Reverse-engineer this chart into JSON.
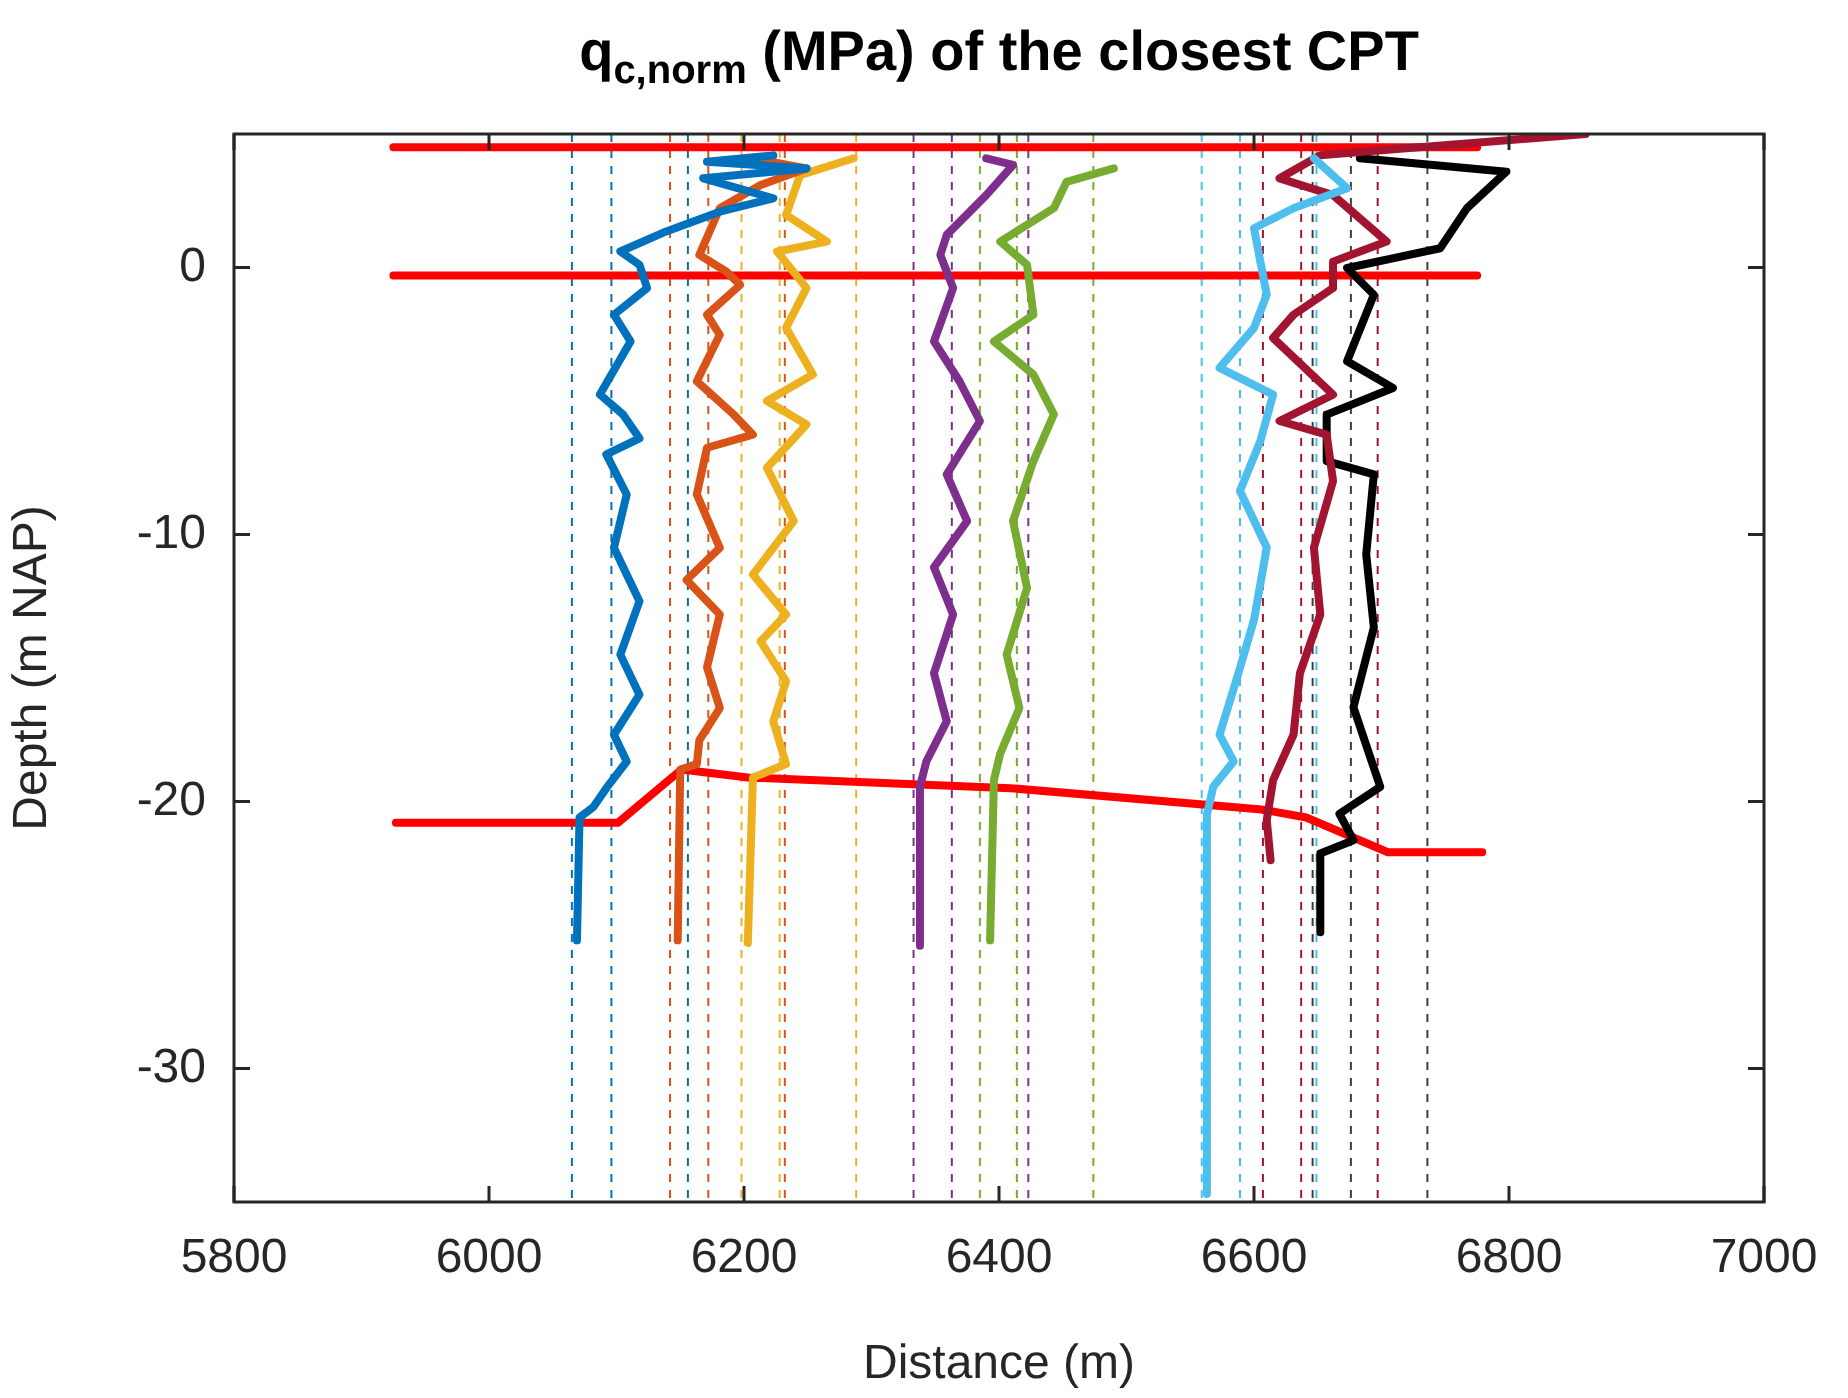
{
  "chart_data": {
    "type": "line",
    "title": "q$_{c,norm}$ (MPa) of the closest CPT",
    "xlabel": "Distance (m)",
    "ylabel": "Depth (m NAP)",
    "xlim": [
      5800,
      7000
    ],
    "xticks": [
      5800,
      6000,
      6200,
      6400,
      6600,
      6800,
      7000
    ],
    "ylim": [
      -35,
      5
    ],
    "yticks": [
      -30,
      -20,
      -10,
      0
    ],
    "series": [
      {
        "color": "#0072bd",
        "x": [
          6223,
          6171,
          6249,
          6168,
          6223,
          6181,
          6139,
          6103,
          6118,
          6124,
          6098,
          6111,
          6087,
          6105,
          6118,
          6092,
          6108,
          6098,
          6118,
          6103,
          6118,
          6098,
          6108,
          6092,
          6082,
          6071,
          6069
        ],
        "values": [
          4.2,
          3.96,
          3.71,
          3.34,
          2.59,
          2.09,
          1.35,
          0.6,
          0.1,
          -0.77,
          -1.77,
          -2.77,
          -4.76,
          -5.5,
          -6.4,
          -7.0,
          -8.5,
          -10.5,
          -12.5,
          -14.5,
          -16.0,
          -17.5,
          -18.5,
          -19.5,
          -20.2,
          -20.6,
          -25.2
        ]
      },
      {
        "color": "#d95319",
        "x": [
          6207,
          6249,
          6213,
          6181,
          6165,
          6186,
          6197,
          6171,
          6181,
          6163,
          6192,
          6207,
          6171,
          6163,
          6181,
          6155,
          6181,
          6171,
          6181,
          6165,
          6163,
          6150,
          6148
        ],
        "values": [
          4.09,
          3.71,
          3.09,
          2.22,
          0.47,
          -0.15,
          -0.65,
          -1.77,
          -2.52,
          -4.26,
          -5.51,
          -6.26,
          -6.75,
          -8.5,
          -10.5,
          -11.7,
          -13.0,
          -14.97,
          -16.5,
          -17.7,
          -18.6,
          -18.8,
          -25.2
        ]
      },
      {
        "color": "#edb120",
        "x": [
          6286,
          6244,
          6233,
          6265,
          6226,
          6249,
          6233,
          6254,
          6218,
          6249,
          6218,
          6239,
          6207,
          6233,
          6213,
          6233,
          6223,
          6233,
          6207,
          6203
        ],
        "values": [
          4.09,
          3.46,
          1.97,
          0.97,
          0.6,
          -0.77,
          -2.26,
          -4.01,
          -5.0,
          -5.88,
          -7.5,
          -9.5,
          -11.5,
          -13.0,
          -14.0,
          -15.5,
          -17.0,
          -18.6,
          -19.1,
          -25.3
        ]
      },
      {
        "color": "#7e2f8e",
        "x": [
          6390,
          6411,
          6390,
          6359,
          6354,
          6364,
          6349,
          6369,
          6385,
          6359,
          6375,
          6349,
          6364,
          6349,
          6359,
          6343,
          6338,
          6338
        ],
        "values": [
          4.09,
          3.84,
          2.71,
          1.22,
          0.47,
          -0.77,
          -2.77,
          -4.26,
          -5.75,
          -7.75,
          -9.5,
          -11.23,
          -13.0,
          -15.2,
          -17.0,
          -18.5,
          -19.45,
          -25.4
        ]
      },
      {
        "color": "#77ac30",
        "x": [
          6490,
          6453,
          6443,
          6401,
          6422,
          6427,
          6396,
          6427,
          6443,
          6427,
          6411,
          6422,
          6406,
          6416,
          6401,
          6396,
          6393
        ],
        "values": [
          3.71,
          3.21,
          2.22,
          0.97,
          0.1,
          -1.77,
          -2.77,
          -4.01,
          -5.5,
          -7.25,
          -9.5,
          -12.0,
          -14.5,
          -16.5,
          -18.2,
          -19.2,
          -25.2
        ]
      },
      {
        "color": "#4dbeee",
        "x": [
          6647,
          6673,
          6631,
          6600,
          6605,
          6610,
          6600,
          6573,
          6615,
          6605,
          6589,
          6610,
          6600,
          6589,
          6573,
          6584,
          6568,
          6563,
          6563
        ],
        "values": [
          4.09,
          2.97,
          2.22,
          1.47,
          0.22,
          -1.02,
          -2.26,
          -3.76,
          -4.76,
          -6.5,
          -8.37,
          -10.49,
          -13.2,
          -15.0,
          -17.5,
          -18.5,
          -19.45,
          -20.5,
          -34.7
        ]
      },
      {
        "color": "#a2142f",
        "x": [
          6860,
          6690,
          6652,
          6620,
          6662,
          6704,
          6662,
          6662,
          6631,
          6615,
          6662,
          6620,
          6657,
          6662,
          6647,
          6652,
          6636,
          6631,
          6615,
          6610,
          6613
        ],
        "values": [
          5.0,
          4.35,
          4.2,
          3.34,
          2.71,
          0.97,
          0.22,
          -0.77,
          -1.77,
          -2.64,
          -4.76,
          -5.75,
          -6.26,
          -8.0,
          -10.49,
          -13.0,
          -15.2,
          -17.5,
          -19.2,
          -20.7,
          -22.2
        ]
      },
      {
        "color": "#000000",
        "x": [
          6683,
          6798,
          6767,
          6746,
          6673,
          6694,
          6673,
          6709,
          6657,
          6657,
          6694,
          6688,
          6694,
          6678,
          6699,
          6667,
          6678,
          6652,
          6652
        ],
        "values": [
          4.09,
          3.59,
          2.22,
          0.72,
          -0.02,
          -1.02,
          -3.51,
          -4.51,
          -5.51,
          -7.25,
          -7.75,
          -10.74,
          -13.48,
          -16.47,
          -19.45,
          -20.46,
          -21.45,
          -21.95,
          -24.9
        ]
      },
      {
        "color": "#ff0000",
        "x": [
          5925,
          6775
        ],
        "values": [
          4.5,
          4.5
        ]
      },
      {
        "color": "#ff0000",
        "x": [
          5925,
          6775
        ],
        "values": [
          -0.3,
          -0.3
        ]
      },
      {
        "color": "#ff0000",
        "x": [
          5927,
          6101,
          6151,
          6203,
          6409,
          6606,
          6641,
          6705,
          6779
        ],
        "values": [
          -20.8,
          -20.8,
          -18.8,
          -19.1,
          -19.5,
          -20.3,
          -20.6,
          -21.9,
          -21.9
        ]
      }
    ],
    "ref_lines": [
      {
        "axis": "x",
        "value": 6065,
        "color": "#0072bd",
        "line_style": "dashed"
      },
      {
        "axis": "x",
        "value": 6096,
        "color": "#0072bd",
        "line_style": "dashed"
      },
      {
        "axis": "x",
        "value": 6156,
        "color": "#0072bd",
        "line_style": "dashed"
      },
      {
        "axis": "x",
        "value": 6142,
        "color": "#d95319",
        "line_style": "dashed"
      },
      {
        "axis": "x",
        "value": 6172,
        "color": "#d95319",
        "line_style": "dashed"
      },
      {
        "axis": "x",
        "value": 6232,
        "color": "#d95319",
        "line_style": "dashed"
      },
      {
        "axis": "x",
        "value": 6198,
        "color": "#edb120",
        "line_style": "dashed"
      },
      {
        "axis": "x",
        "value": 6228,
        "color": "#edb120",
        "line_style": "dashed"
      },
      {
        "axis": "x",
        "value": 6288,
        "color": "#edb120",
        "line_style": "dashed"
      },
      {
        "axis": "x",
        "value": 6333,
        "color": "#7e2f8e",
        "line_style": "dashed"
      },
      {
        "axis": "x",
        "value": 6363,
        "color": "#7e2f8e",
        "line_style": "dashed"
      },
      {
        "axis": "x",
        "value": 6423,
        "color": "#7e2f8e",
        "line_style": "dashed"
      },
      {
        "axis": "x",
        "value": 6385,
        "color": "#77ac30",
        "line_style": "dashed"
      },
      {
        "axis": "x",
        "value": 6414,
        "color": "#77ac30",
        "line_style": "dashed"
      },
      {
        "axis": "x",
        "value": 6474,
        "color": "#77ac30",
        "line_style": "dashed"
      },
      {
        "axis": "x",
        "value": 6559,
        "color": "#4dbeee",
        "line_style": "dashed"
      },
      {
        "axis": "x",
        "value": 6589,
        "color": "#4dbeee",
        "line_style": "dashed"
      },
      {
        "axis": "x",
        "value": 6649,
        "color": "#4dbeee",
        "line_style": "dashed"
      },
      {
        "axis": "x",
        "value": 6607,
        "color": "#a2142f",
        "line_style": "dashed"
      },
      {
        "axis": "x",
        "value": 6637,
        "color": "#a2142f",
        "line_style": "dashed"
      },
      {
        "axis": "x",
        "value": 6697,
        "color": "#a2142f",
        "line_style": "dashed"
      },
      {
        "axis": "x",
        "value": 6646,
        "color": "#404040",
        "line_style": "dashed"
      },
      {
        "axis": "x",
        "value": 6676,
        "color": "#404040",
        "line_style": "dashed"
      },
      {
        "axis": "x",
        "value": 6736,
        "color": "#404040",
        "line_style": "dashed"
      }
    ]
  }
}
